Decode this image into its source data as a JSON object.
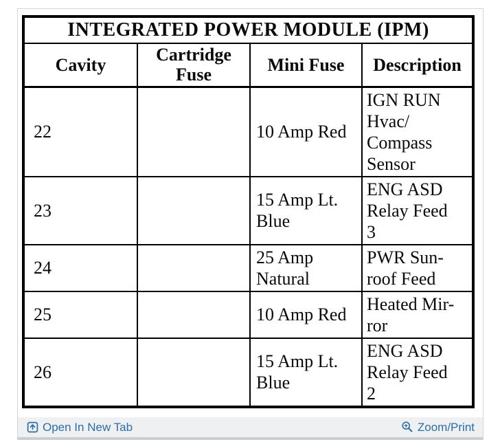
{
  "table": {
    "title": "INTEGRATED POWER MODULE (IPM)",
    "columns": [
      "Cavity",
      "Cartridge Fuse",
      "Mini Fuse",
      "Description"
    ],
    "rows": [
      {
        "cavity": "22",
        "cartridge_fuse": "",
        "mini_fuse": "10 Amp Red",
        "description": "IGN RUN\nHvac/\nCompass\nSensor"
      },
      {
        "cavity": "23",
        "cartridge_fuse": "",
        "mini_fuse": "15 Amp Lt.\nBlue",
        "description": "ENG ASD\nRelay Feed\n3"
      },
      {
        "cavity": "24",
        "cartridge_fuse": "",
        "mini_fuse": "25 Amp\nNatural",
        "description": "PWR Sun-\nroof Feed"
      },
      {
        "cavity": "25",
        "cartridge_fuse": "",
        "mini_fuse": "10 Amp Red",
        "description": "Heated Mir-\nror"
      },
      {
        "cavity": "26",
        "cartridge_fuse": "",
        "mini_fuse": "15 Amp Lt.\nBlue",
        "description": "ENG ASD\nRelay Feed\n2"
      }
    ]
  },
  "footer": {
    "open_in_new_tab_label": "Open In New Tab",
    "zoom_print_label": "Zoom/Print"
  },
  "icons": {
    "open_in_new_tab_icon": "box-with-up-arrow",
    "zoom_print_icon": "magnifier-with-plus"
  },
  "colors": {
    "link_blue": "#2e6da4",
    "table_border": "#000000",
    "footer_background": "#eef0f2",
    "frame_border": "#d2d6d9"
  }
}
